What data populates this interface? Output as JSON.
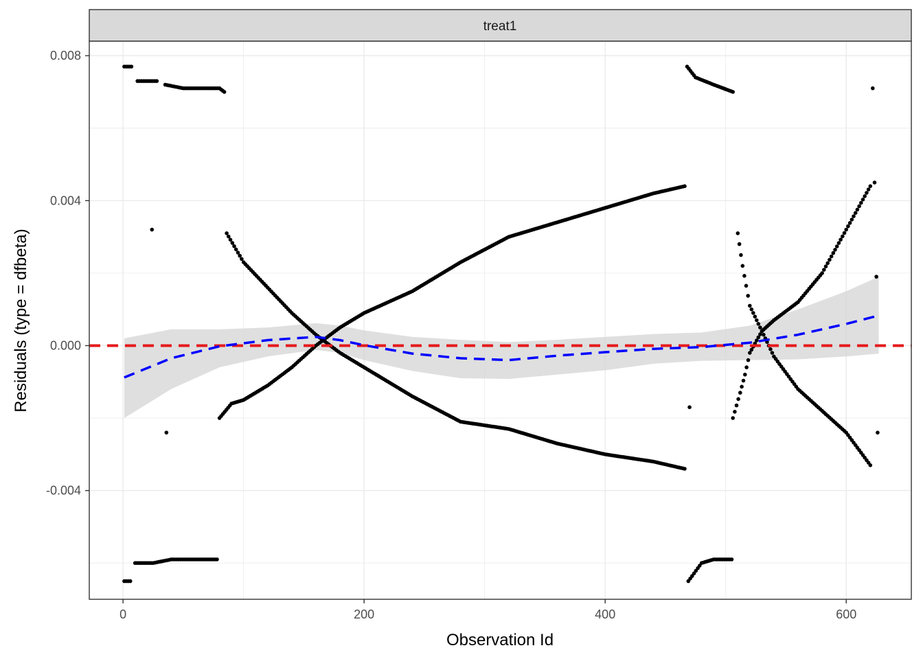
{
  "chart_data": {
    "type": "scatter",
    "facet": "treat1",
    "xlabel": "Observation Id",
    "ylabel": "Residuals (type = dfbeta)",
    "xlim": [
      -28,
      654
    ],
    "ylim": [
      -0.007,
      0.0084
    ],
    "x_ticks": [
      0,
      200,
      400,
      600
    ],
    "x_tick_labels": [
      "0",
      "200",
      "400",
      "600"
    ],
    "y_ticks": [
      -0.004,
      0.0,
      0.004,
      0.008
    ],
    "y_tick_labels": [
      "-0.004",
      "0.000",
      "0.004",
      "0.008"
    ],
    "grid": true,
    "colors": {
      "points": "#000000",
      "smooth_line": "#0000ff",
      "ribbon": "#d4d4d4",
      "reference_line": "#e41a1c",
      "strip_fill": "#d9d9d9",
      "grid": "#ebebeb"
    },
    "reference_line_y": 0.0,
    "smooth": {
      "x": [
        1,
        40,
        80,
        120,
        160,
        180,
        200,
        240,
        280,
        320,
        360,
        400,
        440,
        480,
        520,
        560,
        600,
        627
      ],
      "y": [
        -0.00088,
        -0.00035,
        -2e-05,
        0.00015,
        0.00024,
        0.00015,
        1e-05,
        -0.00022,
        -0.00035,
        -0.0004,
        -0.00028,
        -0.00018,
        -9e-05,
        -4e-05,
        8e-05,
        0.0003,
        0.0006,
        0.00083
      ],
      "ymin": [
        -0.002,
        -0.0012,
        -0.0006,
        -0.0003,
        -0.00012,
        -0.0002,
        -0.0004,
        -0.0007,
        -0.0009,
        -0.00092,
        -0.0008,
        -0.00068,
        -0.0005,
        -0.00042,
        -0.0004,
        -0.00038,
        -0.0003,
        -0.00022
      ],
      "ymax": [
        0.0002,
        0.00045,
        0.00045,
        0.0005,
        0.00062,
        0.00055,
        0.00042,
        0.00024,
        0.00016,
        0.0001,
        0.00016,
        0.00024,
        0.00032,
        0.00036,
        0.00055,
        0.001,
        0.0015,
        0.0019
      ]
    },
    "series": [
      {
        "x": [
          1,
          7
        ],
        "y": [
          0.0077,
          0.0077
        ]
      },
      {
        "x": [
          12,
          20,
          28
        ],
        "y": [
          0.0073,
          0.0073,
          0.0073
        ]
      },
      {
        "x": [
          35,
          50,
          60,
          80,
          84
        ],
        "y": [
          0.0072,
          0.0071,
          0.0071,
          0.0071,
          0.007
        ]
      },
      {
        "x": [
          1,
          6
        ],
        "y": [
          -0.0065,
          -0.0065
        ]
      },
      {
        "x": [
          10,
          25,
          40,
          60,
          78
        ],
        "y": [
          -0.006,
          -0.006,
          -0.0059,
          -0.0059,
          -0.0059
        ]
      },
      {
        "x": [
          80,
          90,
          100,
          110,
          120,
          140,
          160,
          180,
          200,
          240,
          280,
          320,
          360,
          400,
          440,
          466
        ],
        "y": [
          -0.002,
          -0.0016,
          -0.0015,
          -0.0013,
          -0.0011,
          -0.0006,
          0.0,
          0.0005,
          0.0009,
          0.0015,
          0.0023,
          0.003,
          0.0034,
          0.0038,
          0.0042,
          0.0044
        ]
      },
      {
        "x": [
          86,
          100,
          120,
          140,
          160,
          180,
          200,
          240,
          280,
          320,
          360,
          400,
          440,
          466
        ],
        "y": [
          0.0031,
          0.0023,
          0.0016,
          0.0009,
          0.0003,
          -0.0002,
          -0.0006,
          -0.0014,
          -0.0021,
          -0.0023,
          -0.0027,
          -0.003,
          -0.0032,
          -0.0034
        ]
      },
      {
        "x": [
          24,
          36,
          470
        ],
        "y": [
          0.0032,
          -0.0024,
          -0.0017
        ]
      },
      {
        "x": [
          468,
          475,
          490,
          506
        ],
        "y": [
          0.0077,
          0.0074,
          0.0072,
          0.007
        ]
      },
      {
        "x": [
          469,
          480,
          490,
          505
        ],
        "y": [
          -0.0065,
          -0.006,
          -0.0059,
          -0.0059
        ]
      },
      {
        "x": [
          506,
          512,
          516,
          520,
          530,
          540,
          560,
          580,
          600,
          620
        ],
        "y": [
          -0.002,
          -0.0013,
          -0.0008,
          -0.0002,
          0.0004,
          0.0007,
          0.0012,
          0.002,
          0.0032,
          0.0044
        ]
      },
      {
        "x": [
          510,
          514,
          520,
          530,
          540,
          560,
          580,
          600,
          620
        ],
        "y": [
          0.0031,
          0.0022,
          0.0011,
          0.0004,
          -0.0003,
          -0.0012,
          -0.0018,
          -0.0024,
          -0.0033
        ]
      },
      {
        "x": [
          622,
          625,
          626
        ],
        "y": [
          0.0071,
          0.0019,
          -0.0024
        ]
      }
    ]
  }
}
